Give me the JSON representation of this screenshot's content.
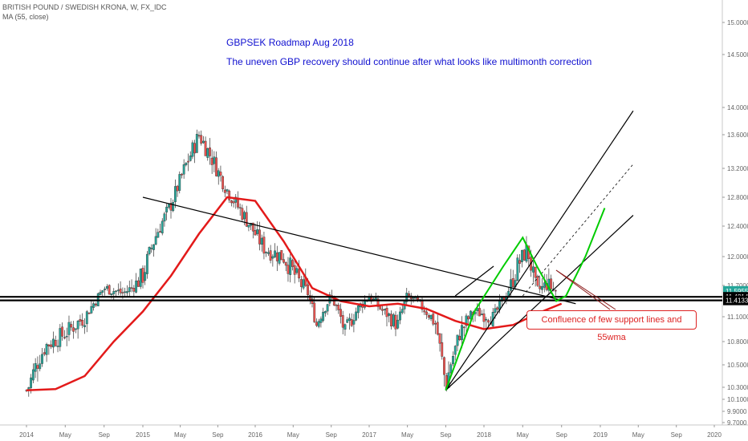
{
  "header": {
    "symbol_line": "BRITISH POUND / SWEDISH KRONA, W, FX_IDC",
    "indicator_line": "MA (55, close)"
  },
  "annotations": {
    "title": "GBPSEK Roadmap Aug 2018",
    "subtitle": "The uneven GBP recovery should continue after what looks like multimonth correction",
    "callout": "Confluence of few support lines and 55wma"
  },
  "colors": {
    "up_candle": "#26a69a",
    "down_candle": "#ef5350",
    "moving_average": "#e31a1a",
    "projection": "#00cc00",
    "trendline": "#000000",
    "price_badge": "#000000"
  },
  "chart_data": {
    "type": "candlestick",
    "title": "GBPSEK Roadmap Aug 2018",
    "x_tick_labels": [
      "2014",
      "May",
      "Sep",
      "2015",
      "May",
      "Sep",
      "2016",
      "May",
      "Sep",
      "2017",
      "May",
      "Sep",
      "2018",
      "May",
      "Sep",
      "2019",
      "May",
      "Sep",
      "2020"
    ],
    "y_tick_labels": [
      "15.0000",
      "14.5000",
      "14.0000",
      "13.6000",
      "13.2000",
      "12.8000",
      "12.4000",
      "12.0000",
      "11.7000",
      "11.1000",
      "10.8000",
      "10.5000",
      "10.3000",
      "10.1000",
      "9.9000",
      "9.7000"
    ],
    "y_tick_values": [
      15.0,
      14.5,
      14.0,
      13.6,
      13.2,
      12.8,
      12.4,
      12.0,
      11.7,
      11.1,
      10.8,
      10.5,
      10.3,
      10.1,
      9.9,
      9.7
    ],
    "ylim": [
      9.62,
      15.2
    ],
    "price_badges": [
      "11.5955",
      "11.4814",
      "11.4133"
    ],
    "price_badge_values": [
      11.5955,
      11.4814,
      11.4133
    ],
    "horizontal_support_levels": [
      11.4814,
      11.4133
    ],
    "price_path": {
      "dates": [
        "2014-01-01",
        "2014-03-01",
        "2014-05-01",
        "2014-07-01",
        "2014-09-01",
        "2014-11-01",
        "2015-01-01",
        "2015-02-15",
        "2015-04-01",
        "2015-05-15",
        "2015-07-01",
        "2015-08-15",
        "2015-10-01",
        "2015-12-01",
        "2016-02-01",
        "2016-04-01",
        "2016-06-15",
        "2016-07-15",
        "2016-09-01",
        "2016-10-15",
        "2016-12-01",
        "2017-01-01",
        "2017-02-15",
        "2017-04-01",
        "2017-05-01",
        "2017-06-15",
        "2017-08-01",
        "2017-09-01",
        "2017-10-15",
        "2017-12-01",
        "2018-02-01",
        "2018-03-15",
        "2018-04-15",
        "2018-05-15",
        "2018-06-15",
        "2018-07-15",
        "2018-08-15"
      ],
      "close": [
        10.25,
        10.75,
        10.9,
        11.1,
        11.65,
        11.55,
        11.8,
        12.3,
        12.7,
        13.2,
        13.6,
        13.3,
        12.9,
        12.5,
        12.1,
        12.0,
        11.6,
        11.0,
        11.5,
        10.9,
        11.3,
        11.5,
        11.2,
        11.0,
        11.5,
        11.3,
        11.0,
        10.3,
        10.9,
        11.2,
        11.1,
        11.6,
        11.9,
        12.1,
        11.6,
        11.7,
        11.6
      ]
    },
    "moving_average_55": {
      "dates": [
        "2014-01-01",
        "2014-04-01",
        "2014-07-01",
        "2014-10-01",
        "2015-01-01",
        "2015-04-01",
        "2015-07-01",
        "2015-10-01",
        "2016-01-01",
        "2016-04-01",
        "2016-07-01",
        "2016-10-01",
        "2017-01-01",
        "2017-04-01",
        "2017-07-01",
        "2017-10-01",
        "2018-01-01",
        "2018-04-01",
        "2018-07-01",
        "2018-09-01"
      ],
      "values": [
        10.25,
        10.27,
        10.4,
        10.8,
        11.2,
        11.8,
        12.3,
        12.8,
        12.75,
        12.2,
        11.65,
        11.4,
        11.3,
        11.35,
        11.25,
        11.05,
        10.95,
        11.0,
        11.2,
        11.35
      ]
    },
    "trendlines": [
      {
        "from": [
          "2015-01-01",
          12.8
        ],
        "to": [
          "2018-10-15",
          11.35
        ]
      },
      {
        "from": [
          "2017-09-01",
          10.25
        ],
        "to": [
          "2019-04-15",
          12.55
        ]
      },
      {
        "from": [
          "2017-09-01",
          10.25
        ],
        "to": [
          "2019-04-15",
          13.95
        ]
      },
      {
        "from": [
          "2017-10-01",
          11.5
        ],
        "to": [
          "2018-02-01",
          11.9
        ]
      }
    ],
    "dashed_channel": {
      "from": [
        "2018-05-01",
        11.5
      ],
      "to": [
        "2019-04-15",
        13.25
      ]
    },
    "projection_arc": {
      "dates": [
        "2017-09-01",
        "2017-12-01",
        "2018-03-01",
        "2018-05-01",
        "2018-06-15",
        "2018-08-15",
        "2018-09-15",
        "2018-11-15",
        "2019-01-15"
      ],
      "values": [
        10.25,
        11.2,
        11.9,
        12.25,
        11.9,
        11.4,
        11.5,
        12.0,
        12.65
      ]
    }
  }
}
